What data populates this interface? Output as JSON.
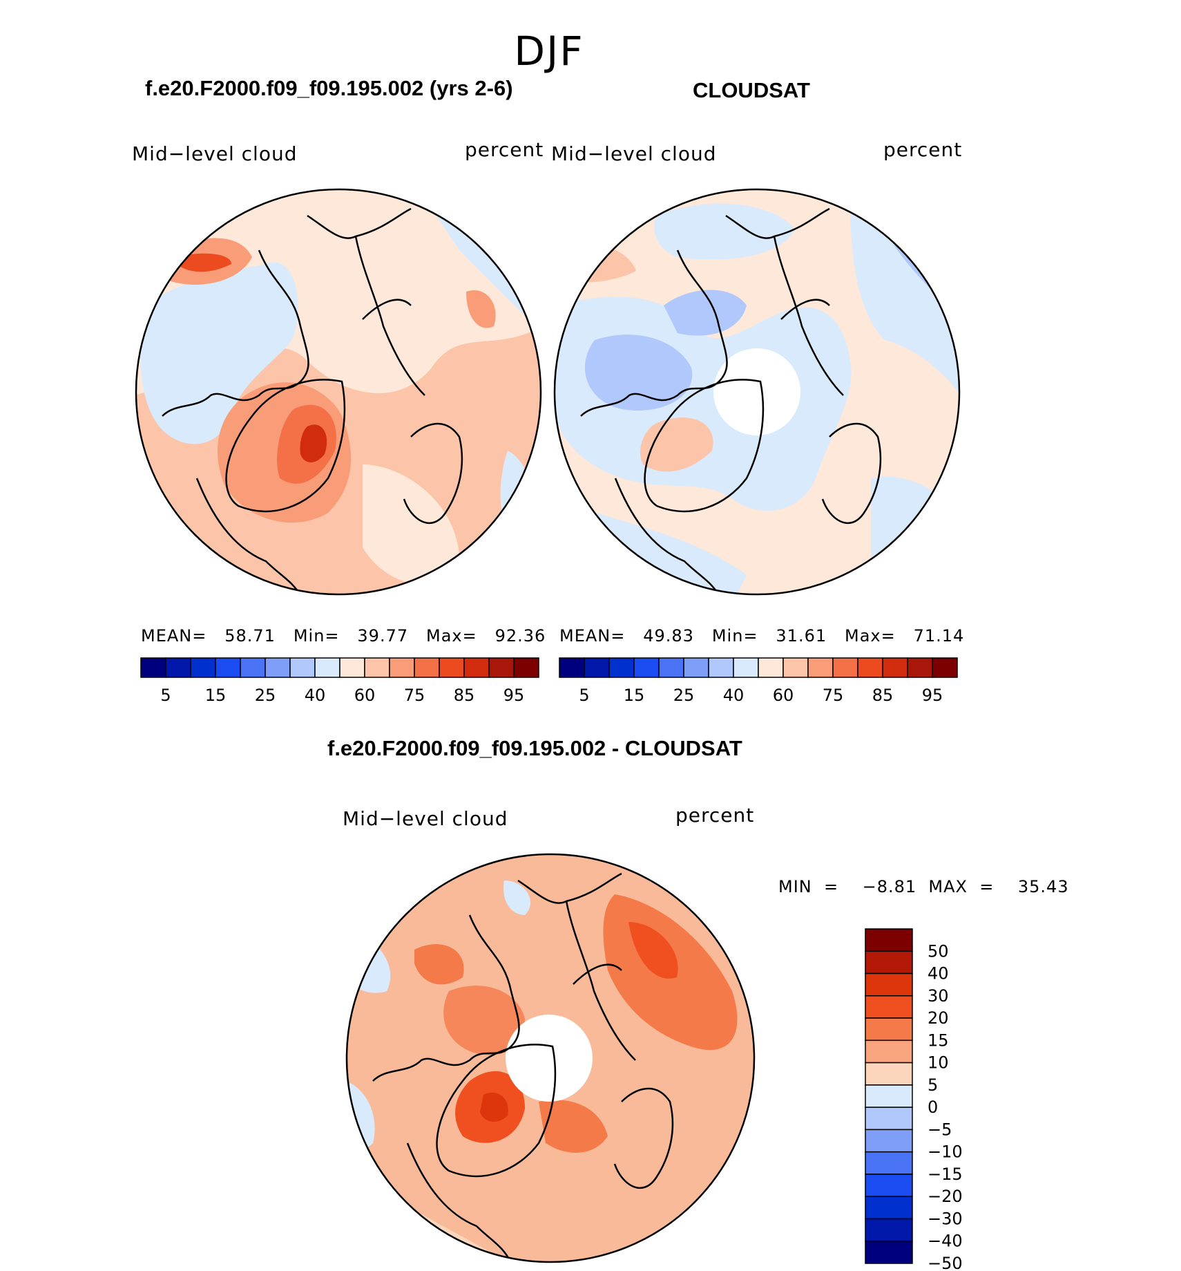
{
  "figure": {
    "season": "DJF",
    "left_panel_title": "f.e20.F2000.f09_f09.195.002 (yrs 2-6)",
    "right_panel_title": "CLOUDSAT",
    "diff_panel_title": "f.e20.F2000.f09_f09.195.002 - CLOUDSAT"
  },
  "panels": {
    "model": {
      "variable": "Mid−level cloud",
      "units": "percent",
      "stats_text": "MEAN=   58.71   Min=   39.77   Max=   92.36"
    },
    "obs": {
      "variable": "Mid−level cloud",
      "units": "percent",
      "stats_text": "MEAN=   49.83   Min=   31.61   Max=   71.14"
    },
    "diff": {
      "variable": "Mid−level cloud",
      "units": "percent",
      "stats_text": "MIN  =    −8.81  MAX  =    35.43"
    }
  },
  "colorbars": {
    "abs_colors": [
      "#00007f",
      "#0019aa",
      "#0031cf",
      "#1a4cf2",
      "#4b73f5",
      "#7f9ef8",
      "#b0c8fb",
      "#d9eafc",
      "#fde8d9",
      "#fcc4a8",
      "#f99c78",
      "#f47147",
      "#ec4a1f",
      "#d02c0d",
      "#a8170a",
      "#7d0000"
    ],
    "abs_labels": [
      "5",
      "15",
      "25",
      "40",
      "60",
      "75",
      "85",
      "95"
    ],
    "diff_colors": [
      "#7d0000",
      "#b31906",
      "#dc360a",
      "#f04f20",
      "#f57a4a",
      "#f8a47c",
      "#fbd6bc",
      "#d9eafc",
      "#b0c8fb",
      "#7f9ef8",
      "#4b73f5",
      "#1a4cf2",
      "#0031cf",
      "#0019aa",
      "#00007f"
    ],
    "diff_labels": [
      "50",
      "40",
      "30",
      "20",
      "15",
      "10",
      "5",
      "0",
      "−5",
      "−10",
      "−15",
      "−20",
      "−30",
      "−40",
      "−50"
    ]
  }
}
